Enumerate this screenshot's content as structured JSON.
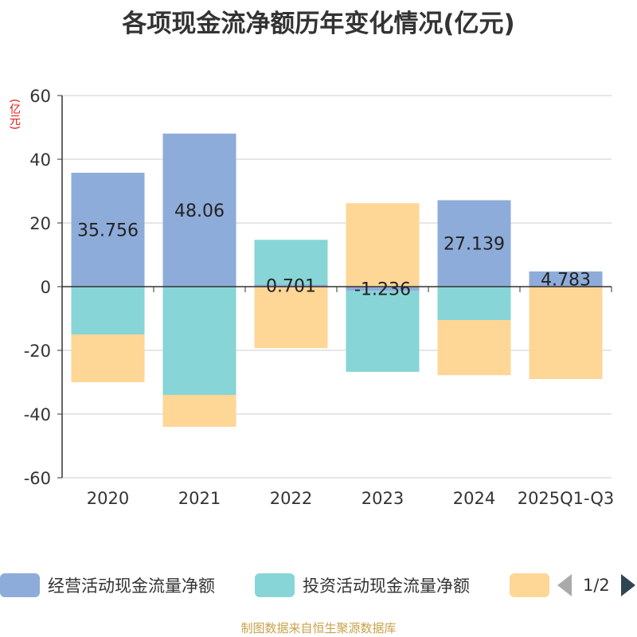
{
  "title": "各项现金流净额历年变化情况(亿元)",
  "unit_label": "(亿元)",
  "source": "制图数据来自恒生聚源数据库",
  "legend": {
    "items": [
      {
        "name": "经营活动现金流量净额",
        "color": "#8eacd9"
      },
      {
        "name": "投资活动现金流量净额",
        "color": "#87d5d6"
      },
      {
        "name": "",
        "color": "#fed696"
      }
    ],
    "page": "1/2"
  },
  "chart_data": {
    "type": "bar",
    "stacked": true,
    "categories": [
      "2020",
      "2021",
      "2022",
      "2023",
      "2024",
      "2025Q1-Q3"
    ],
    "ylim": [
      -60,
      60
    ],
    "yticks": [
      60,
      40,
      20,
      0,
      -20,
      -40,
      -60
    ],
    "grid": true,
    "series": [
      {
        "name": "经营活动现金流量净额",
        "color": "#8eacd9",
        "values": [
          35.756,
          48.06,
          0.701,
          -1.236,
          27.139,
          4.783
        ],
        "labels": [
          "35.756",
          "48.06",
          "0.701",
          "-1.236",
          "27.139",
          "4.783"
        ]
      },
      {
        "name": "投资活动现金流量净额",
        "color": "#87d5d6",
        "values": [
          -15.0,
          -34.0,
          14.0,
          -25.5,
          -10.5,
          0
        ]
      },
      {
        "name": "",
        "color": "#fed696",
        "values": [
          -15.0,
          -10.0,
          -19.3,
          26.2,
          -17.3,
          -29.0
        ]
      }
    ]
  }
}
